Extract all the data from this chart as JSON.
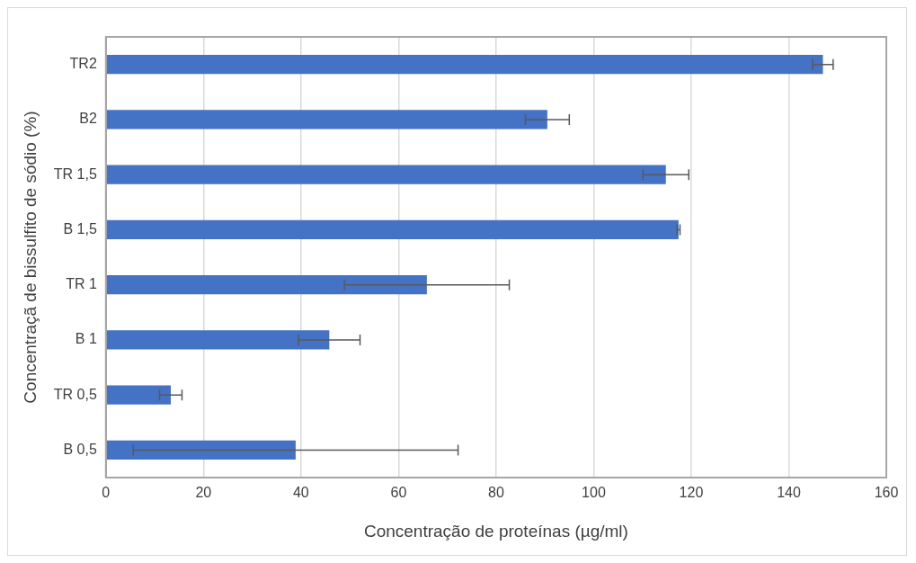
{
  "chart_data": {
    "type": "bar",
    "orientation": "horizontal",
    "xlabel": "Concentração de proteínas (µg/ml)",
    "ylabel": "Concentraçã de bissulfito de sódio (%)",
    "categories": [
      "TR2",
      "B2",
      "TR 1,5",
      "B 1,5",
      "TR 1",
      "B 1",
      "TR 0,5",
      "B 0,5"
    ],
    "values": [
      147,
      90.5,
      114.8,
      117.4,
      65.8,
      45.8,
      13.3,
      38.9
    ],
    "errors": [
      2.1,
      4.5,
      4.7,
      0.3,
      16.9,
      6.3,
      2.3,
      33.3
    ],
    "color": "#4472c4",
    "xlim": [
      0,
      160
    ],
    "xticks": [
      0,
      20,
      40,
      60,
      80,
      100,
      120,
      140,
      160
    ],
    "grid": "x",
    "legend": false
  }
}
